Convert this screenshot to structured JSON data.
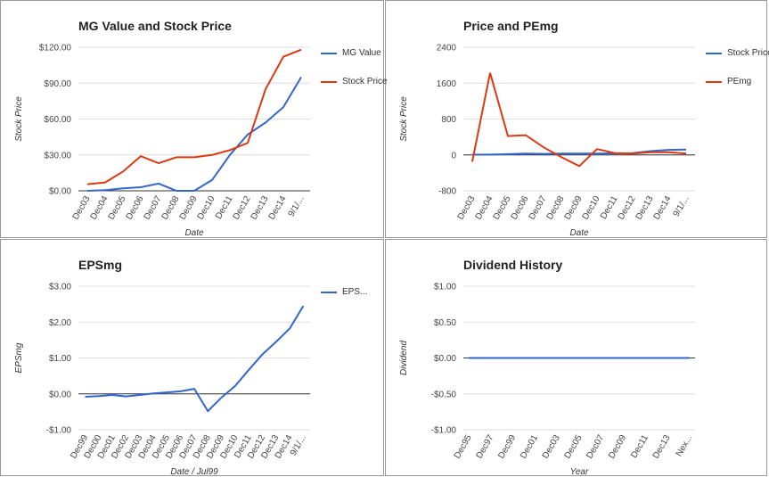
{
  "chart_data": [
    {
      "type": "line",
      "title": "MG Value and Stock Price",
      "y_label": "Stock Price",
      "x_label": "Date",
      "categories": [
        "Dec03",
        "Dec04",
        "Dec05",
        "Dec06",
        "Dec07",
        "Dec08",
        "Dec09",
        "Dec10",
        "Dec11",
        "Dec12",
        "Dec13",
        "Dec14",
        "9/1/..."
      ],
      "series": [
        {
          "name": "MG Value",
          "color": "#3366cc",
          "values": [
            0,
            0.5,
            2,
            3,
            6,
            0,
            0,
            9,
            30,
            47,
            57,
            70,
            95
          ]
        },
        {
          "name": "Stock Price",
          "color": "#dc3912",
          "values": [
            5.5,
            7,
            16,
            29,
            23,
            28,
            28,
            30,
            34,
            40,
            85,
            112,
            118
          ]
        }
      ],
      "ylim": [
        0,
        120
      ],
      "yticks": [
        {
          "value": 120,
          "label": "$120.00"
        },
        {
          "value": 90,
          "label": "$90.00"
        },
        {
          "value": 60,
          "label": "$60.00"
        },
        {
          "value": 30,
          "label": "$30.00"
        },
        {
          "value": 0,
          "label": "$0.00"
        }
      ],
      "grid": true
    },
    {
      "type": "line",
      "title": "Price and PEmg",
      "y_label": "Stock Price",
      "x_label": "Date",
      "categories": [
        "Dec03",
        "Dec04",
        "Dec05",
        "Dec06",
        "Dec07",
        "Dec08",
        "Dec09",
        "Dec10",
        "Dec11",
        "Dec12",
        "Dec13",
        "Dec14",
        "9/1/..."
      ],
      "series": [
        {
          "name": "Stock Price",
          "color": "#3366cc",
          "values": [
            5.5,
            7,
            16,
            29,
            23,
            28,
            28,
            30,
            34,
            40,
            85,
            112,
            118
          ]
        },
        {
          "name": "PEmg",
          "color": "#dc3912",
          "values": [
            -150,
            1830,
            420,
            440,
            170,
            -50,
            -250,
            130,
            40,
            30,
            60,
            60,
            30
          ]
        }
      ],
      "ylim": [
        -800,
        2400
      ],
      "yticks": [
        2400,
        1600,
        800,
        0,
        -800
      ],
      "grid": true
    },
    {
      "type": "line",
      "title": "EPSmg",
      "y_label": "EPSmg",
      "x_label": "Date / Jul99",
      "categories": [
        "Dec99",
        "Dec00",
        "Dec01",
        "Dec02",
        "Dec03",
        "Dec04",
        "Dec05",
        "Dec06",
        "Dec07",
        "Dec08",
        "Dec09",
        "Dec10",
        "Dec11",
        "Dec12",
        "Dec13",
        "Dec14",
        "9/1/..."
      ],
      "series": [
        {
          "name": "EPS...",
          "color": "#3366cc",
          "values": [
            -0.08,
            -0.06,
            -0.03,
            -0.07,
            -0.03,
            0.01,
            0.04,
            0.07,
            0.14,
            -0.48,
            -0.1,
            0.22,
            0.67,
            1.1,
            1.45,
            1.82,
            2.45
          ]
        }
      ],
      "ylim": [
        -1,
        3
      ],
      "yticks": [
        {
          "value": 3,
          "label": "$3.00"
        },
        {
          "value": 2,
          "label": "$2.00"
        },
        {
          "value": 1,
          "label": "$1.00"
        },
        {
          "value": 0,
          "label": "$0.00"
        },
        {
          "value": -1,
          "label": "-$1.00"
        }
      ],
      "grid": true
    },
    {
      "type": "line",
      "title": "Dividend History",
      "y_label": "Dividend",
      "x_label": "Year",
      "categories": [
        "Dec95",
        null,
        "Dec97",
        null,
        "Dec99",
        null,
        "Dec01",
        null,
        "Dec03",
        null,
        "Dec05",
        null,
        "Dec07",
        null,
        "Dec09",
        null,
        "Dec11",
        null,
        "Dec13",
        null,
        "Nex..."
      ],
      "values": [
        0,
        0,
        0,
        0,
        0,
        0,
        0,
        0,
        0,
        0,
        0,
        0,
        0,
        0,
        0,
        0,
        0,
        0,
        0,
        0,
        0
      ],
      "color": "#3366cc",
      "ylim": [
        -1,
        1
      ],
      "yticks": [
        {
          "value": 1,
          "label": "$1.00"
        },
        {
          "value": 0.5,
          "label": "$0.50"
        },
        {
          "value": 0,
          "label": "$0.00"
        },
        {
          "value": -0.5,
          "label": "-$0.50"
        },
        {
          "value": -1,
          "label": "-$1.00"
        }
      ],
      "grid": true
    }
  ]
}
